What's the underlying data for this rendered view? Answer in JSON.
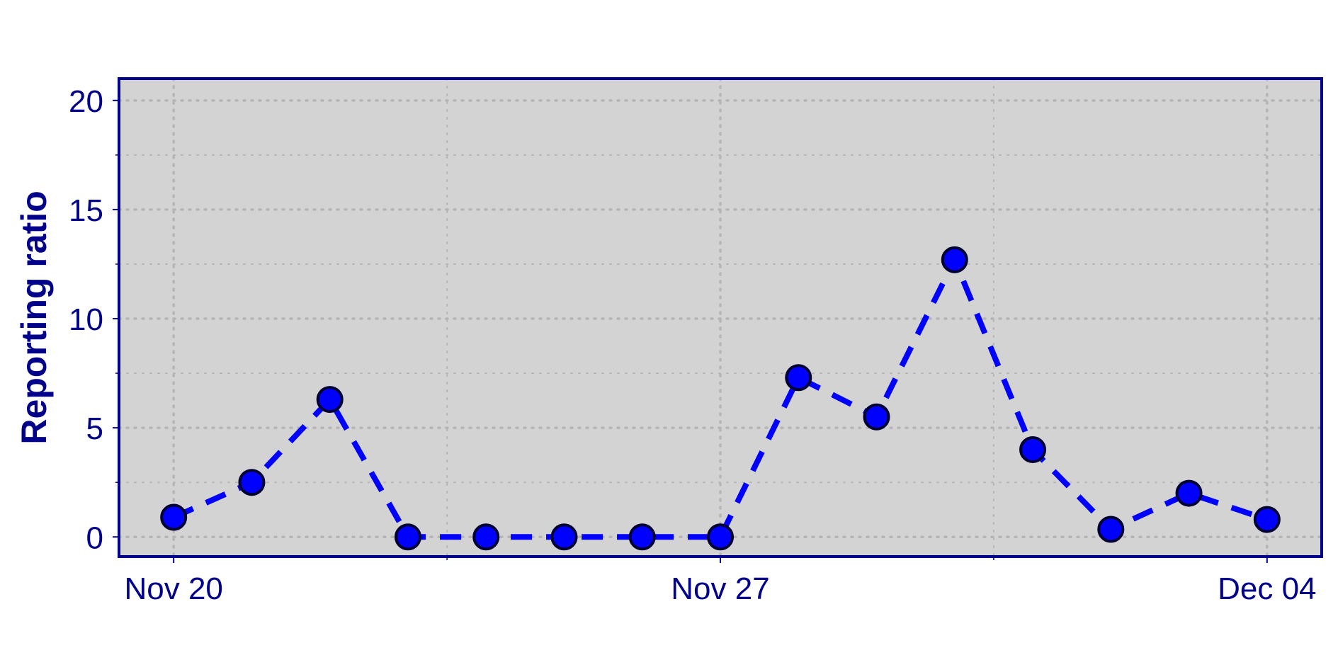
{
  "chart_data": {
    "type": "line",
    "title": "",
    "xlabel": "",
    "ylabel": "Reporting ratio",
    "x": [
      "2023-11-20",
      "2023-11-21",
      "2023-11-22",
      "2023-11-23",
      "2023-11-24",
      "2023-11-25",
      "2023-11-26",
      "2023-11-27",
      "2023-11-28",
      "2023-11-29",
      "2023-11-30",
      "2023-12-01",
      "2023-12-02",
      "2023-12-03",
      "2023-12-04"
    ],
    "xtick_labels": [
      "Nov 20",
      "Nov 27",
      "Dec 04"
    ],
    "xlim": [
      "2023-11-19.3",
      "2023-12-04.7"
    ],
    "ylim": [
      -0.9,
      21
    ],
    "yticks": [
      0,
      5,
      10,
      15,
      20
    ],
    "series": [
      {
        "values": [
          0.9,
          2.5,
          6.3,
          0,
          0,
          0,
          0,
          0,
          7.3,
          5.5,
          12.7,
          4.0,
          0.35,
          2.0,
          0.8
        ],
        "line_style": "dashed",
        "marker": "circle"
      }
    ],
    "grid": true,
    "grid_style": "dotted",
    "legend": false,
    "colors": {
      "line": "#0000ff",
      "marker_fill": "#0000ff",
      "marker_edge": "#000033",
      "plot_background": "#d3d3d3",
      "axis_frame": "#00008b",
      "text": "#00008b",
      "grid": "#b5b5b5"
    }
  }
}
